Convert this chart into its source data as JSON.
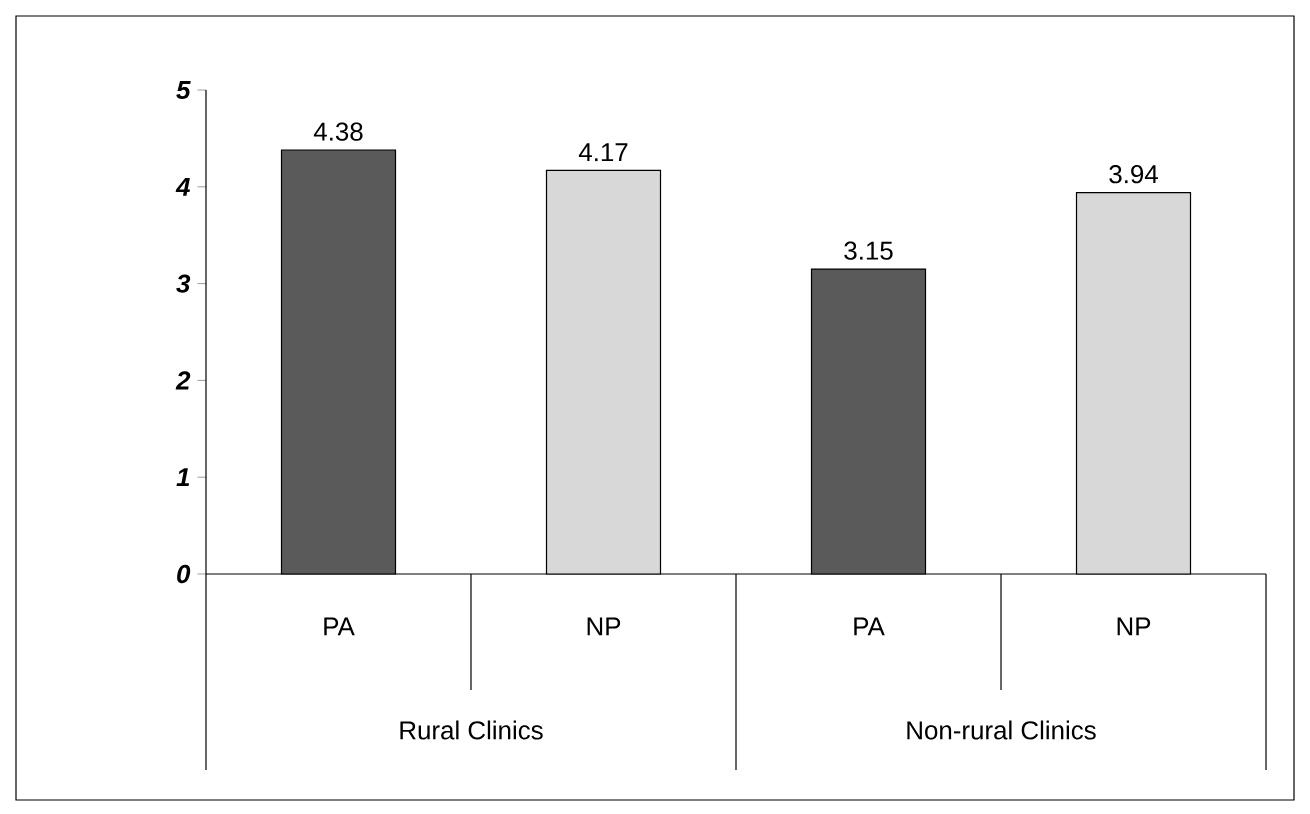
{
  "chart_data": {
    "type": "bar",
    "categories": [
      "PA",
      "NP",
      "PA",
      "NP"
    ],
    "values": [
      4.38,
      4.17,
      3.15,
      3.94
    ],
    "colors": [
      "#5a5a5a",
      "#d8d8d8",
      "#5a5a5a",
      "#d8d8d8"
    ],
    "ylim": [
      0,
      5
    ],
    "yticks": [
      0,
      1,
      2,
      3,
      4,
      5
    ],
    "data_labels": true,
    "grid": false,
    "annotations": [
      "Rural Clinics",
      "Non-rural Clinics"
    ]
  }
}
